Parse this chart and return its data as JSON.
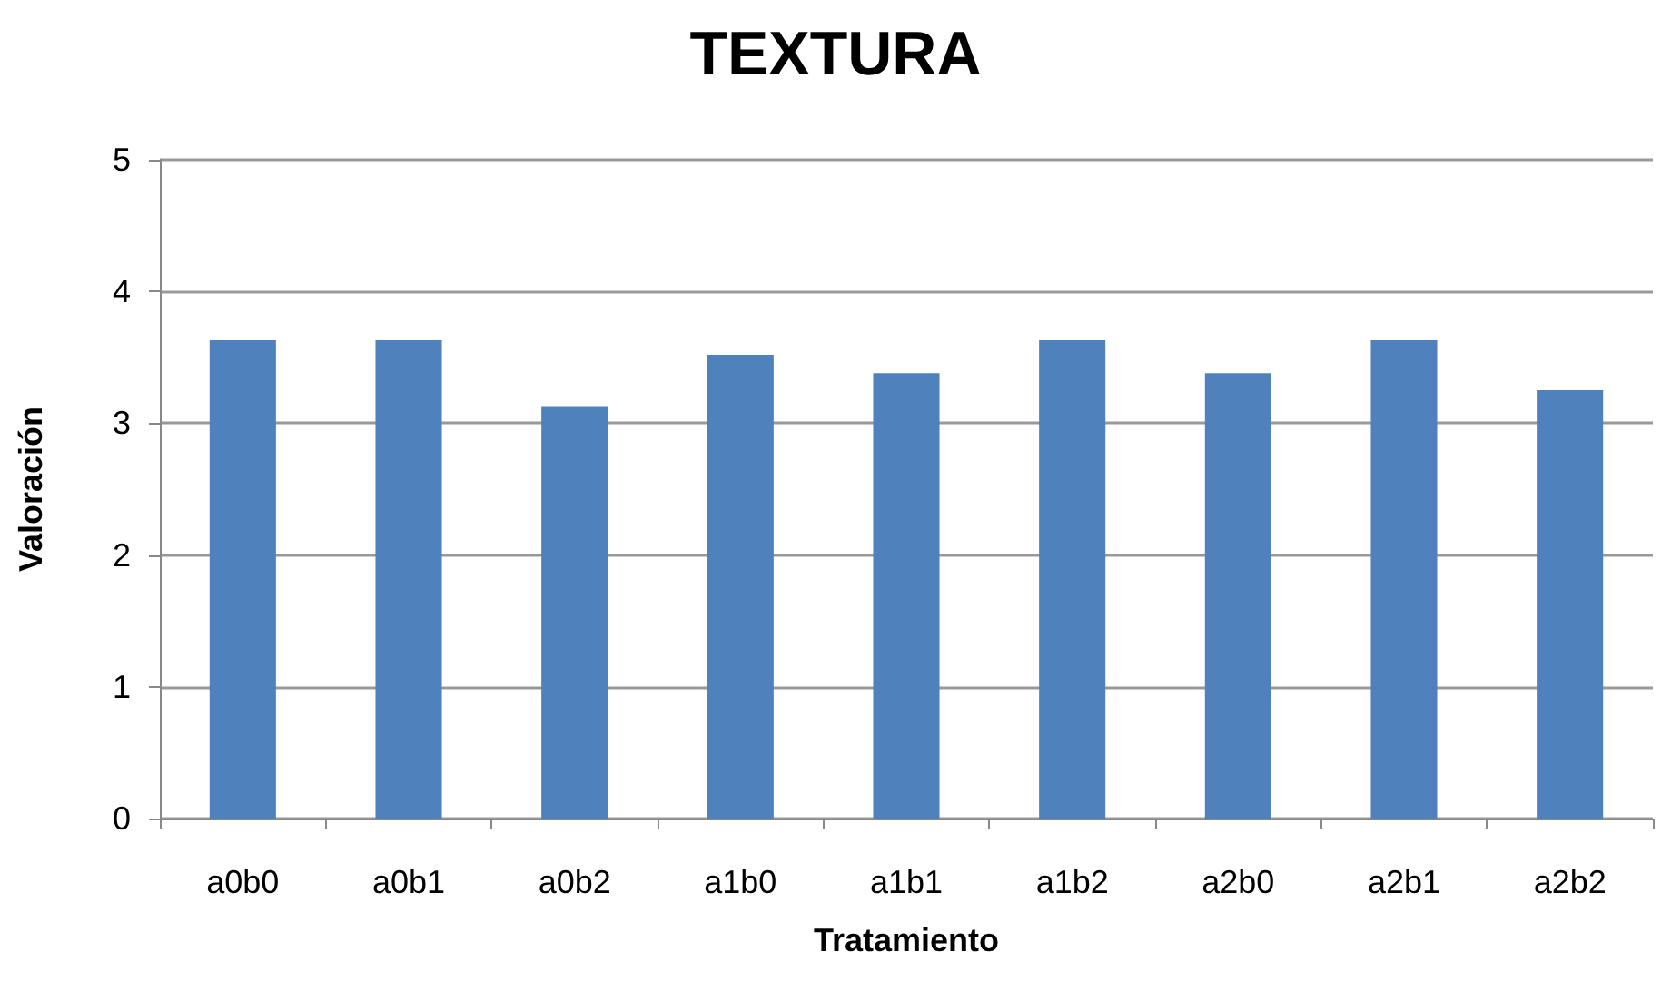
{
  "chart_data": {
    "type": "bar",
    "title": "TEXTURA",
    "xlabel": "Tratamiento",
    "ylabel": "Valoración",
    "categories": [
      "a0b0",
      "a0b1",
      "a0b2",
      "a1b0",
      "a1b1",
      "a1b2",
      "a2b0",
      "a2b1",
      "a2b2"
    ],
    "values": [
      3.63,
      3.63,
      3.13,
      3.52,
      3.38,
      3.63,
      3.38,
      3.63,
      3.25
    ],
    "color": "#4f81bd",
    "ylim": [
      0,
      5
    ],
    "yticks": [
      0,
      1,
      2,
      3,
      4,
      5
    ],
    "grid": "y"
  }
}
